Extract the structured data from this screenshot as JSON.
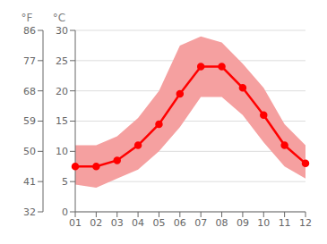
{
  "chart_data": {
    "type": "line",
    "categories": [
      "01",
      "02",
      "03",
      "04",
      "05",
      "06",
      "07",
      "08",
      "09",
      "10",
      "11",
      "12"
    ],
    "y_label": "°C",
    "y2_label": "°F",
    "ylim": [
      0,
      30
    ],
    "yticks": [
      0,
      5,
      10,
      15,
      20,
      25,
      30
    ],
    "y2lim": [
      32,
      86
    ],
    "y2ticks": [
      32,
      41,
      50,
      59,
      68,
      77,
      86
    ],
    "grid": true,
    "series": [
      {
        "type": "band",
        "color": "#f5a0a0",
        "low": [
          4.5,
          4.0,
          5.5,
          7.0,
          10.0,
          14.0,
          19.0,
          19.0,
          16.0,
          11.5,
          7.5,
          5.5
        ],
        "high": [
          11.0,
          11.0,
          12.5,
          15.5,
          20.0,
          27.5,
          29.0,
          28.0,
          24.5,
          20.5,
          14.5,
          11.0
        ]
      },
      {
        "type": "line",
        "color": "#ff0000",
        "marker": "o",
        "values": [
          7.5,
          7.5,
          8.5,
          11.0,
          14.5,
          19.5,
          24.0,
          24.0,
          20.5,
          16.0,
          11.0,
          8.0
        ]
      }
    ]
  }
}
